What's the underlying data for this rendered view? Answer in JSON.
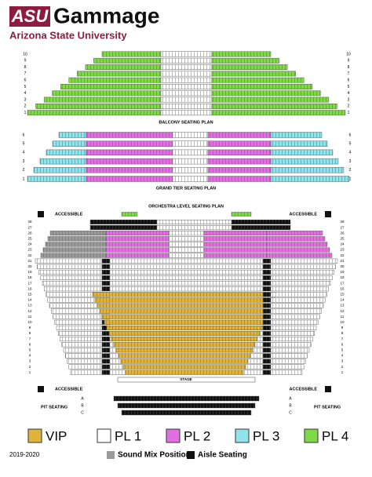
{
  "header": {
    "logo": "ASU",
    "title": "Gammage",
    "subtitle": "Arizona State University"
  },
  "sections": [
    {
      "title": "BALCONY SEATING PLAN",
      "rows": [
        "10",
        "9",
        "8",
        "7",
        "6",
        "5",
        "4",
        "3",
        "2",
        "1"
      ]
    },
    {
      "title": "GRAND TIER SEATING PLAN",
      "rows": [
        "6",
        "5",
        "4",
        "3",
        "2",
        "1"
      ]
    },
    {
      "title": "ORCHESTRA LEVEL SEATING PLAN",
      "accessible": "ACCESSIBLE",
      "stage": "STAGE",
      "rows": [
        "28",
        "27",
        "26",
        "25",
        "24",
        "23",
        "22",
        "21",
        "20",
        "19",
        "18",
        "17",
        "16",
        "15",
        "14",
        "13",
        "12",
        "11",
        "10",
        "9",
        "8",
        "7",
        "6",
        "5",
        "4",
        "3",
        "2",
        "1"
      ],
      "pit": {
        "title": "PIT SEATING",
        "rows": [
          "A",
          "B",
          "C"
        ]
      }
    }
  ],
  "legend": [
    {
      "label": "VIP",
      "color": "#e0b43c"
    },
    {
      "label": "PL 1",
      "color": "#ffffff"
    },
    {
      "label": "PL 2",
      "color": "#e070e0"
    },
    {
      "label": "PL 3",
      "color": "#8fe3ea"
    },
    {
      "label": "PL 4",
      "color": "#7fd84a"
    }
  ],
  "footer": {
    "season": "2019-2020",
    "keys": [
      {
        "label": "Sound Mix Position",
        "color": "#9a9a9a"
      },
      {
        "label": "Aisle Seating",
        "color": "#111111"
      }
    ]
  }
}
